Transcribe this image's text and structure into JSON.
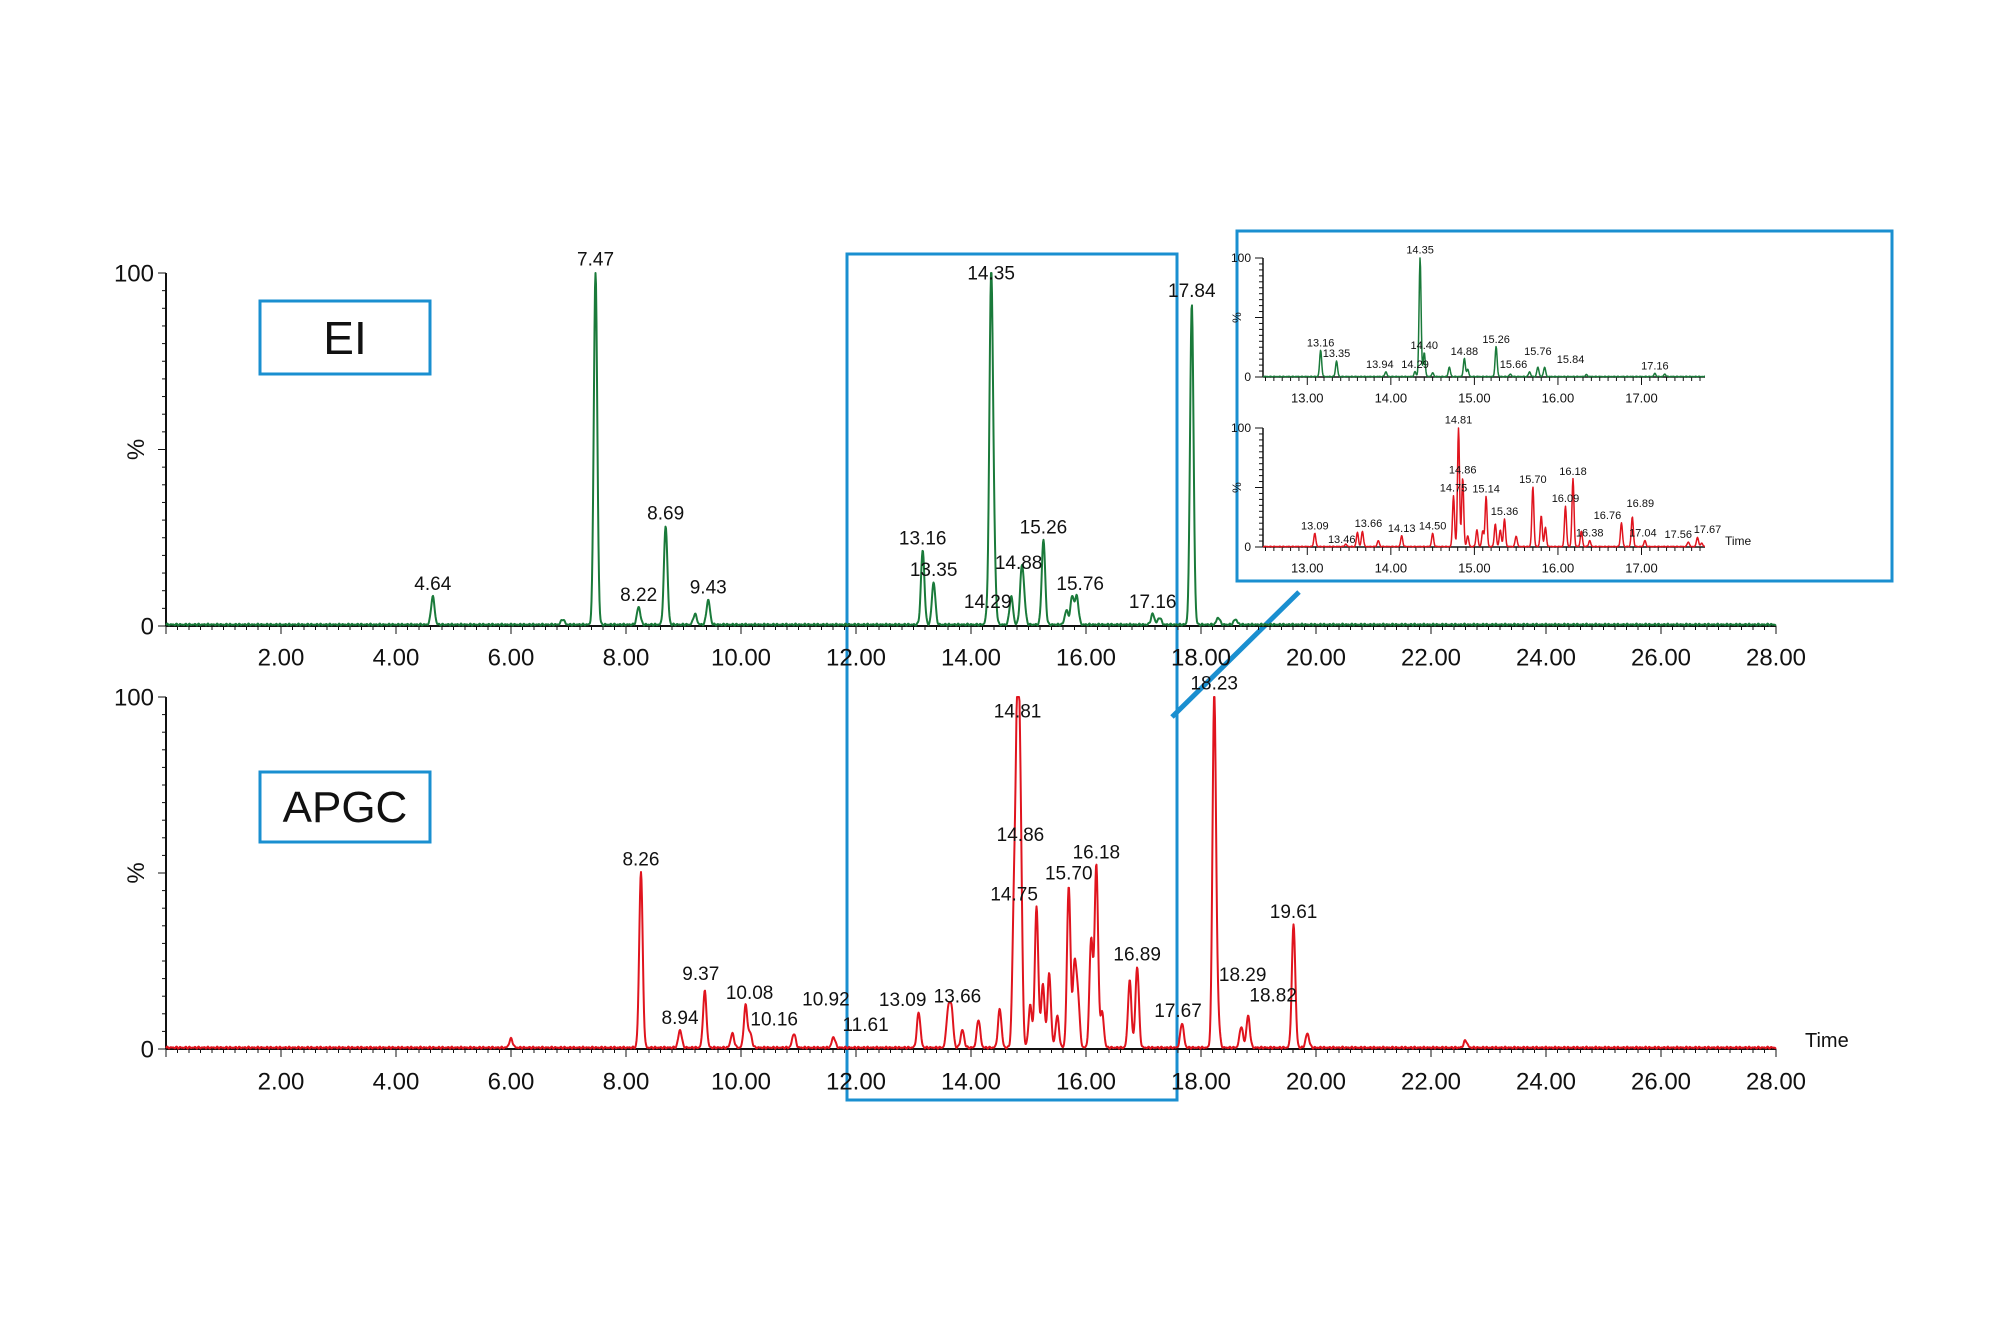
{
  "chart_data": [
    {
      "type": "line",
      "panel": "main-top",
      "label_box": "EI",
      "color": "#1a7a3a",
      "ylabel": "%",
      "ylim": [
        0,
        100
      ],
      "xlim": [
        0,
        28
      ],
      "y_tick_labels": [
        "0",
        "100"
      ],
      "x_tick_labels": [
        "2.00",
        "4.00",
        "6.00",
        "8.00",
        "10.00",
        "12.00",
        "14.00",
        "16.00",
        "18.00",
        "20.00",
        "22.00",
        "24.00",
        "26.00",
        "28.00"
      ],
      "xlabel": "",
      "peaks": [
        {
          "x": 4.64,
          "y": 8,
          "label": "4.64"
        },
        {
          "x": 7.47,
          "y": 100,
          "label": "7.47"
        },
        {
          "x": 8.22,
          "y": 5,
          "label": "8.22"
        },
        {
          "x": 8.69,
          "y": 28,
          "label": "8.69"
        },
        {
          "x": 9.43,
          "y": 7,
          "label": "9.43"
        },
        {
          "x": 13.16,
          "y": 21,
          "label": "13.16"
        },
        {
          "x": 13.35,
          "y": 12,
          "label": "13.35"
        },
        {
          "x": 14.29,
          "y": 3,
          "label": "14.29"
        },
        {
          "x": 14.35,
          "y": 96,
          "label": "14.35"
        },
        {
          "x": 14.88,
          "y": 14,
          "label": "14.88"
        },
        {
          "x": 15.26,
          "y": 24,
          "label": "15.26"
        },
        {
          "x": 15.76,
          "y": 8,
          "label": "15.76"
        },
        {
          "x": 17.16,
          "y": 3,
          "label": "17.16"
        },
        {
          "x": 17.84,
          "y": 91,
          "label": "17.84"
        },
        {
          "x": 6.9,
          "y": 1.5
        },
        {
          "x": 9.2,
          "y": 3
        },
        {
          "x": 14.4,
          "y": 18
        },
        {
          "x": 14.7,
          "y": 8
        },
        {
          "x": 14.92,
          "y": 6
        },
        {
          "x": 15.66,
          "y": 4
        },
        {
          "x": 15.84,
          "y": 8
        },
        {
          "x": 17.28,
          "y": 2
        },
        {
          "x": 18.3,
          "y": 2
        },
        {
          "x": 18.6,
          "y": 1.5
        }
      ]
    },
    {
      "type": "line",
      "panel": "main-bottom",
      "label_box": "APGC",
      "color": "#e0141e",
      "ylabel": "%",
      "ylim": [
        0,
        100
      ],
      "xlim": [
        0,
        28
      ],
      "y_tick_labels": [
        "0",
        "100"
      ],
      "x_tick_labels": [
        "2.00",
        "4.00",
        "6.00",
        "8.00",
        "10.00",
        "12.00",
        "14.00",
        "16.00",
        "18.00",
        "20.00",
        "22.00",
        "24.00",
        "26.00",
        "28.00"
      ],
      "xlabel": "Time",
      "peaks": [
        {
          "x": 8.26,
          "y": 50,
          "label": "8.26"
        },
        {
          "x": 8.94,
          "y": 5,
          "label": "8.94"
        },
        {
          "x": 9.37,
          "y": 16,
          "label": "9.37"
        },
        {
          "x": 10.08,
          "y": 12,
          "label": "10.08"
        },
        {
          "x": 10.16,
          "y": 4,
          "label": "10.16"
        },
        {
          "x": 10.92,
          "y": 4,
          "label": "10.92"
        },
        {
          "x": 11.61,
          "y": 3,
          "label": "11.61"
        },
        {
          "x": 13.09,
          "y": 10,
          "label": "13.09"
        },
        {
          "x": 13.66,
          "y": 11,
          "label": "13.66"
        },
        {
          "x": 14.75,
          "y": 40,
          "label": "14.75"
        },
        {
          "x": 14.81,
          "y": 92,
          "label": "14.81"
        },
        {
          "x": 14.86,
          "y": 57,
          "label": "14.86"
        },
        {
          "x": 15.7,
          "y": 46,
          "label": "15.70"
        },
        {
          "x": 16.18,
          "y": 52,
          "label": "16.18"
        },
        {
          "x": 16.89,
          "y": 23,
          "label": "16.89"
        },
        {
          "x": 17.67,
          "y": 7,
          "label": "17.67"
        },
        {
          "x": 18.23,
          "y": 100,
          "label": "18.23"
        },
        {
          "x": 18.29,
          "y": 10,
          "label": "18.29"
        },
        {
          "x": 18.82,
          "y": 9,
          "label": "18.82"
        },
        {
          "x": 19.61,
          "y": 35,
          "label": "19.61"
        },
        {
          "x": 6.0,
          "y": 2.5
        },
        {
          "x": 9.85,
          "y": 4
        },
        {
          "x": 13.6,
          "y": 10
        },
        {
          "x": 13.85,
          "y": 5
        },
        {
          "x": 14.13,
          "y": 8
        },
        {
          "x": 14.5,
          "y": 11
        },
        {
          "x": 15.03,
          "y": 12
        },
        {
          "x": 15.14,
          "y": 40
        },
        {
          "x": 15.25,
          "y": 18
        },
        {
          "x": 15.36,
          "y": 21
        },
        {
          "x": 15.5,
          "y": 9
        },
        {
          "x": 15.8,
          "y": 23
        },
        {
          "x": 15.86,
          "y": 14
        },
        {
          "x": 16.09,
          "y": 31
        },
        {
          "x": 16.28,
          "y": 10
        },
        {
          "x": 16.76,
          "y": 19
        },
        {
          "x": 18.7,
          "y": 6
        },
        {
          "x": 19.85,
          "y": 4
        },
        {
          "x": 22.6,
          "y": 2
        }
      ]
    },
    {
      "type": "line",
      "panel": "inset-top",
      "color": "#1a7a3a",
      "ylabel": "%",
      "ylim": [
        0,
        100
      ],
      "xlim": [
        12.47,
        17.76
      ],
      "y_tick_labels": [
        "0",
        "100"
      ],
      "x_tick_labels": [
        "13.00",
        "14.00",
        "15.00",
        "16.00",
        "17.00"
      ],
      "xlabel": "",
      "peaks": [
        {
          "x": 13.16,
          "y": 22,
          "label": "13.16"
        },
        {
          "x": 13.35,
          "y": 13,
          "label": "13.35"
        },
        {
          "x": 13.94,
          "y": 4,
          "label": "13.94"
        },
        {
          "x": 14.29,
          "y": 4,
          "label": "14.29"
        },
        {
          "x": 14.35,
          "y": 100,
          "label": "14.35"
        },
        {
          "x": 14.4,
          "y": 20,
          "label": "14.40"
        },
        {
          "x": 14.88,
          "y": 15,
          "label": "14.88"
        },
        {
          "x": 15.26,
          "y": 25,
          "label": "15.26"
        },
        {
          "x": 15.66,
          "y": 4,
          "label": "15.66"
        },
        {
          "x": 15.76,
          "y": 8,
          "label": "15.76"
        },
        {
          "x": 15.84,
          "y": 8,
          "label": "15.84"
        },
        {
          "x": 17.16,
          "y": 2.5,
          "label": "17.16"
        },
        {
          "x": 14.5,
          "y": 3
        },
        {
          "x": 14.7,
          "y": 8
        },
        {
          "x": 14.92,
          "y": 6
        },
        {
          "x": 15.43,
          "y": 2
        },
        {
          "x": 16.34,
          "y": 1.5
        },
        {
          "x": 17.28,
          "y": 2
        }
      ]
    },
    {
      "type": "line",
      "panel": "inset-bottom",
      "color": "#e0141e",
      "ylabel": "%",
      "ylim": [
        0,
        100
      ],
      "xlim": [
        12.47,
        17.76
      ],
      "y_tick_labels": [
        "0",
        "100"
      ],
      "x_tick_labels": [
        "13.00",
        "14.00",
        "15.00",
        "16.00",
        "17.00"
      ],
      "xlabel": "Time",
      "peaks": [
        {
          "x": 13.09,
          "y": 11,
          "label": "13.09"
        },
        {
          "x": 13.46,
          "y": 2,
          "label": "13.46"
        },
        {
          "x": 13.66,
          "y": 13,
          "label": "13.66"
        },
        {
          "x": 14.13,
          "y": 9,
          "label": "14.13"
        },
        {
          "x": 14.5,
          "y": 11,
          "label": "14.50"
        },
        {
          "x": 14.75,
          "y": 43,
          "label": "14.75"
        },
        {
          "x": 14.81,
          "y": 100,
          "label": "14.81"
        },
        {
          "x": 14.86,
          "y": 58,
          "label": "14.86"
        },
        {
          "x": 15.14,
          "y": 42,
          "label": "15.14"
        },
        {
          "x": 15.36,
          "y": 23,
          "label": "15.36"
        },
        {
          "x": 15.7,
          "y": 50,
          "label": "15.70"
        },
        {
          "x": 16.09,
          "y": 34,
          "label": "16.09"
        },
        {
          "x": 16.18,
          "y": 57,
          "label": "16.18"
        },
        {
          "x": 16.38,
          "y": 5,
          "label": "16.38"
        },
        {
          "x": 16.76,
          "y": 20,
          "label": "16.76"
        },
        {
          "x": 16.89,
          "y": 25,
          "label": "16.89"
        },
        {
          "x": 17.04,
          "y": 5,
          "label": "17.04"
        },
        {
          "x": 17.56,
          "y": 4,
          "label": "17.56"
        },
        {
          "x": 17.67,
          "y": 8,
          "label": "17.67"
        },
        {
          "x": 13.6,
          "y": 12
        },
        {
          "x": 13.85,
          "y": 5
        },
        {
          "x": 14.92,
          "y": 9
        },
        {
          "x": 15.03,
          "y": 14
        },
        {
          "x": 15.1,
          "y": 13
        },
        {
          "x": 15.25,
          "y": 19
        },
        {
          "x": 15.31,
          "y": 14
        },
        {
          "x": 15.5,
          "y": 9
        },
        {
          "x": 15.8,
          "y": 26
        },
        {
          "x": 15.85,
          "y": 16
        },
        {
          "x": 16.28,
          "y": 13
        },
        {
          "x": 17.72,
          "y": 3
        }
      ]
    }
  ],
  "colors": {
    "highlight_box": "#1a8fd0",
    "ei": "#1a7a3a",
    "apgc": "#e0141e"
  }
}
